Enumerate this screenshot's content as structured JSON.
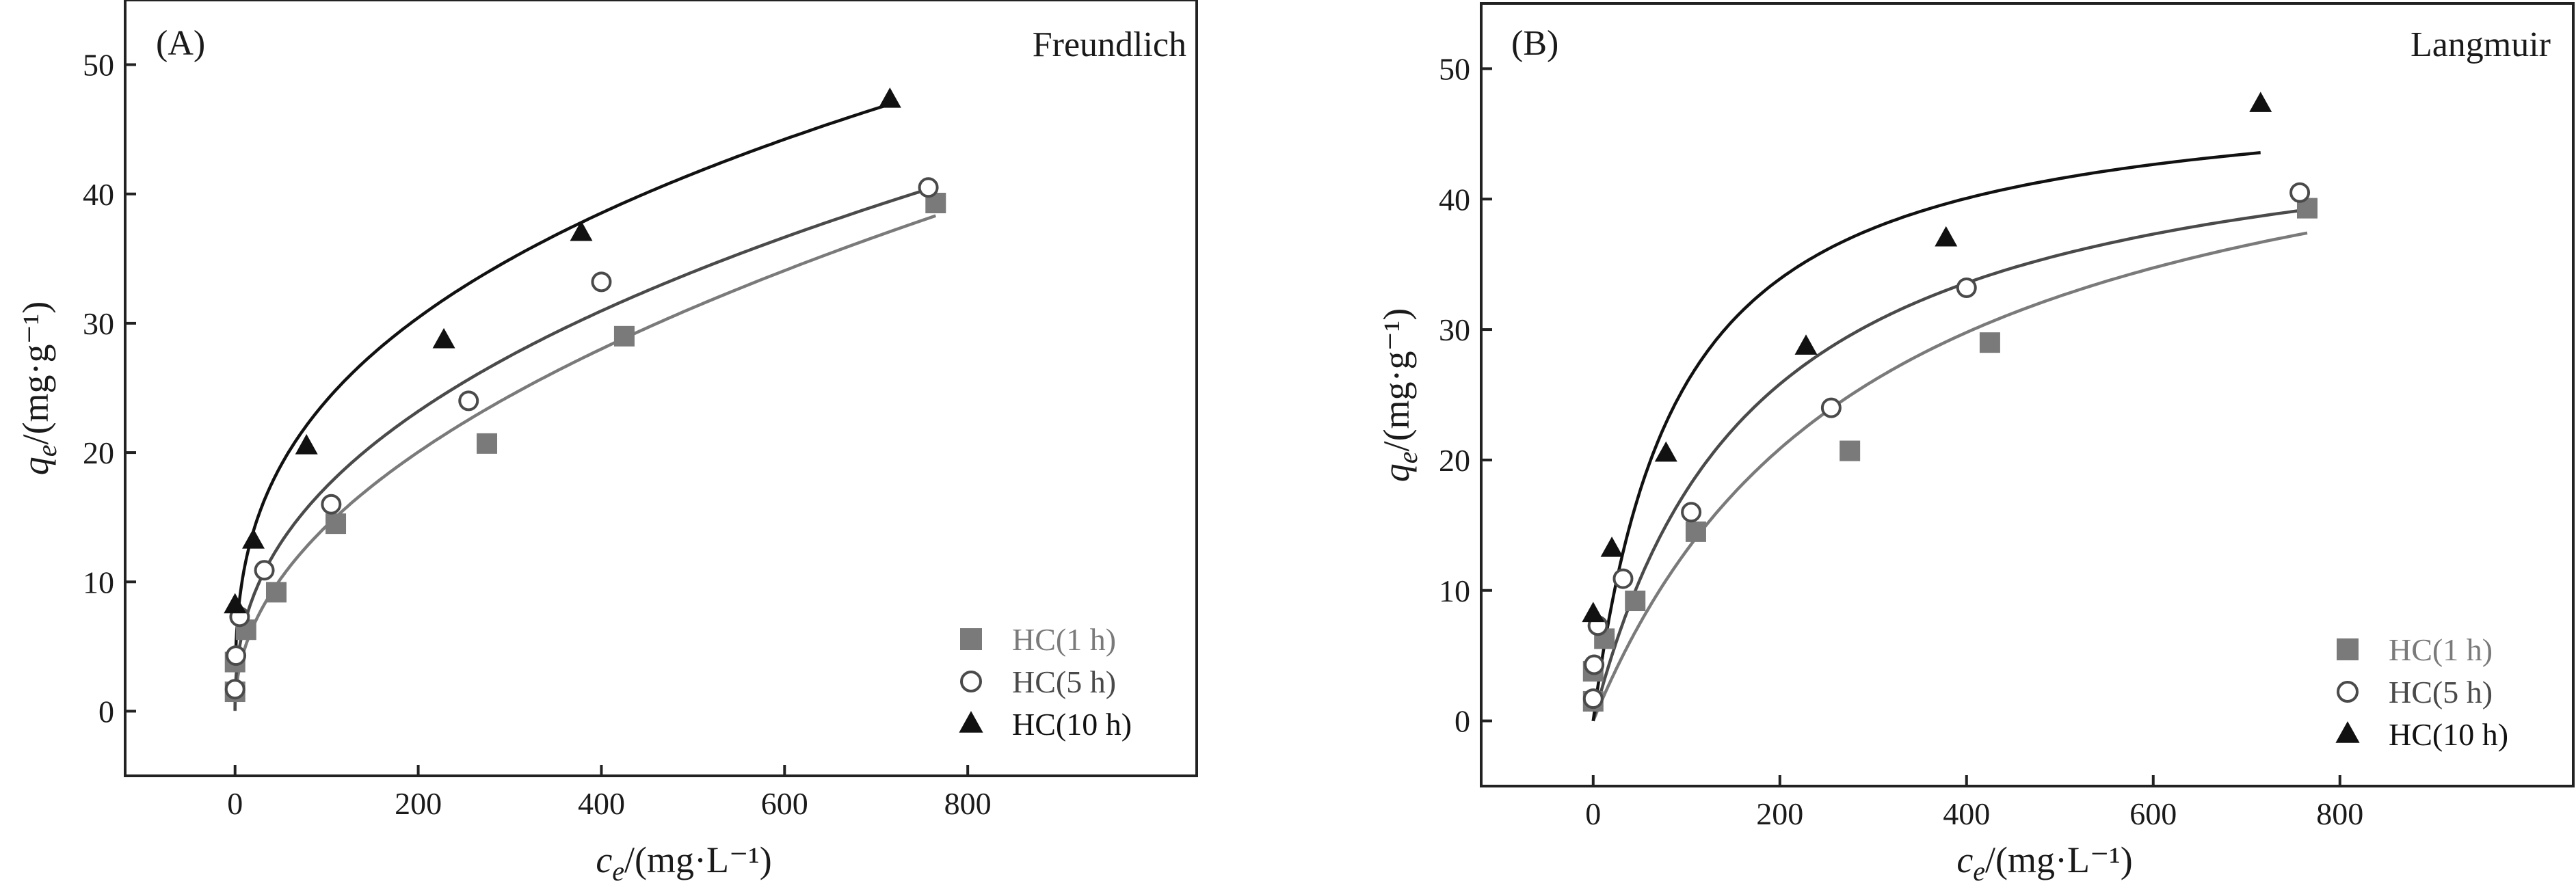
{
  "chart_data": [
    {
      "type": "scatter",
      "panel_label": "(A)",
      "model_label": "Freundlich",
      "xlabel": "c_e/(mg·L⁻¹)",
      "ylabel": "q_e/(mg·g⁻¹)",
      "xlim": [
        -120,
        1050
      ],
      "ylim": [
        -5,
        55
      ],
      "xticks": [
        0,
        200,
        400,
        600,
        800
      ],
      "yticks": [
        0,
        10,
        20,
        30,
        40,
        50
      ],
      "legend_position": "bottom-right",
      "series": [
        {
          "name": "HC(1 h)",
          "marker": "square",
          "color": "#7a7a7a",
          "points": [
            [
              0,
              1.5
            ],
            [
              0,
              3.8
            ],
            [
              12,
              6.3
            ],
            [
              45,
              9.2
            ],
            [
              110,
              14.5
            ],
            [
              275,
              20.7
            ],
            [
              425,
              29.0
            ],
            [
              765,
              39.3
            ]
          ],
          "fit": {
            "model": "freundlich",
            "K": 1.55,
            "n": 2.07,
            "x_range": [
              0,
              765
            ]
          }
        },
        {
          "name": "HC(5 h)",
          "marker": "circle",
          "color": "#4a4a4a",
          "points": [
            [
              0,
              1.7
            ],
            [
              1,
              4.3
            ],
            [
              5,
              7.3
            ],
            [
              32,
              10.9
            ],
            [
              105,
              16.0
            ],
            [
              255,
              24.0
            ],
            [
              400,
              33.2
            ],
            [
              757,
              40.5
            ]
          ],
          "fit": {
            "model": "freundlich",
            "K": 2.55,
            "n": 2.4,
            "x_range": [
              0,
              757
            ]
          }
        },
        {
          "name": "HC(10 h)",
          "marker": "triangle",
          "color": "#111111",
          "points": [
            [
              0,
              8.2
            ],
            [
              20,
              13.2
            ],
            [
              78,
              20.5
            ],
            [
              228,
              28.7
            ],
            [
              378,
              37.0
            ],
            [
              715,
              47.3
            ]
          ],
          "fit": {
            "model": "freundlich",
            "K": 5.02,
            "n": 2.94,
            "x_range": [
              1,
              715
            ]
          }
        }
      ]
    },
    {
      "type": "scatter",
      "panel_label": "(B)",
      "model_label": "Langmuir",
      "xlabel": "c_e/(mg·L⁻¹)",
      "ylabel": "q_e/(mg·g⁻¹)",
      "xlim": [
        -120,
        1050
      ],
      "ylim": [
        -5,
        55
      ],
      "xticks": [
        0,
        200,
        400,
        600,
        800
      ],
      "yticks": [
        0,
        10,
        20,
        30,
        40,
        50
      ],
      "legend_position": "bottom-right",
      "series": [
        {
          "name": "HC(1 h)",
          "marker": "square",
          "color": "#7a7a7a",
          "points": [
            [
              0,
              1.5
            ],
            [
              0,
              3.8
            ],
            [
              12,
              6.3
            ],
            [
              45,
              9.2
            ],
            [
              110,
              14.5
            ],
            [
              275,
              20.7
            ],
            [
              425,
              29.0
            ],
            [
              765,
              39.3
            ]
          ],
          "fit": {
            "model": "langmuir",
            "qm": 52.0,
            "KL": 0.00335,
            "x_range": [
              0,
              765
            ]
          }
        },
        {
          "name": "HC(5 h)",
          "marker": "circle",
          "color": "#4a4a4a",
          "points": [
            [
              0,
              1.7
            ],
            [
              1,
              4.3
            ],
            [
              5,
              7.3
            ],
            [
              32,
              10.9
            ],
            [
              105,
              16.0
            ],
            [
              255,
              24.0
            ],
            [
              400,
              33.2
            ],
            [
              757,
              40.5
            ]
          ],
          "fit": {
            "model": "langmuir",
            "qm": 48.0,
            "KL": 0.00582,
            "x_range": [
              0,
              765
            ]
          }
        },
        {
          "name": "HC(10 h)",
          "marker": "triangle",
          "color": "#111111",
          "points": [
            [
              0,
              8.2
            ],
            [
              20,
              13.2
            ],
            [
              78,
              20.5
            ],
            [
              228,
              28.7
            ],
            [
              378,
              37.0
            ],
            [
              715,
              47.3
            ]
          ],
          "fit": {
            "model": "langmuir",
            "qm": 49.0,
            "KL": 0.0112,
            "x_range": [
              0,
              715
            ]
          }
        }
      ]
    }
  ]
}
